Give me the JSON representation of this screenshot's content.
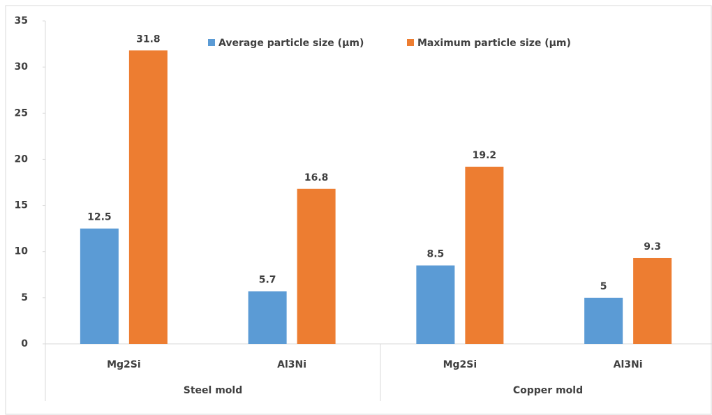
{
  "chart_data": {
    "type": "bar",
    "categories": [
      "Mg2Si",
      "Al3Ni",
      "Mg2Si",
      "Al3Ni"
    ],
    "group_labels": [
      "Steel mold",
      "Copper mold"
    ],
    "series": [
      {
        "name": "Average particle size (µm)",
        "color": "#5b9bd5",
        "values": [
          12.5,
          5.7,
          8.5,
          5
        ]
      },
      {
        "name": "Maximum particle size (µm)",
        "color": "#ed7d31",
        "values": [
          31.8,
          16.8,
          19.2,
          9.3
        ]
      }
    ],
    "ylim": [
      0,
      35
    ],
    "yticks": [
      0,
      5,
      10,
      15,
      20,
      25,
      30,
      35
    ],
    "grid": false,
    "legend": "top"
  }
}
